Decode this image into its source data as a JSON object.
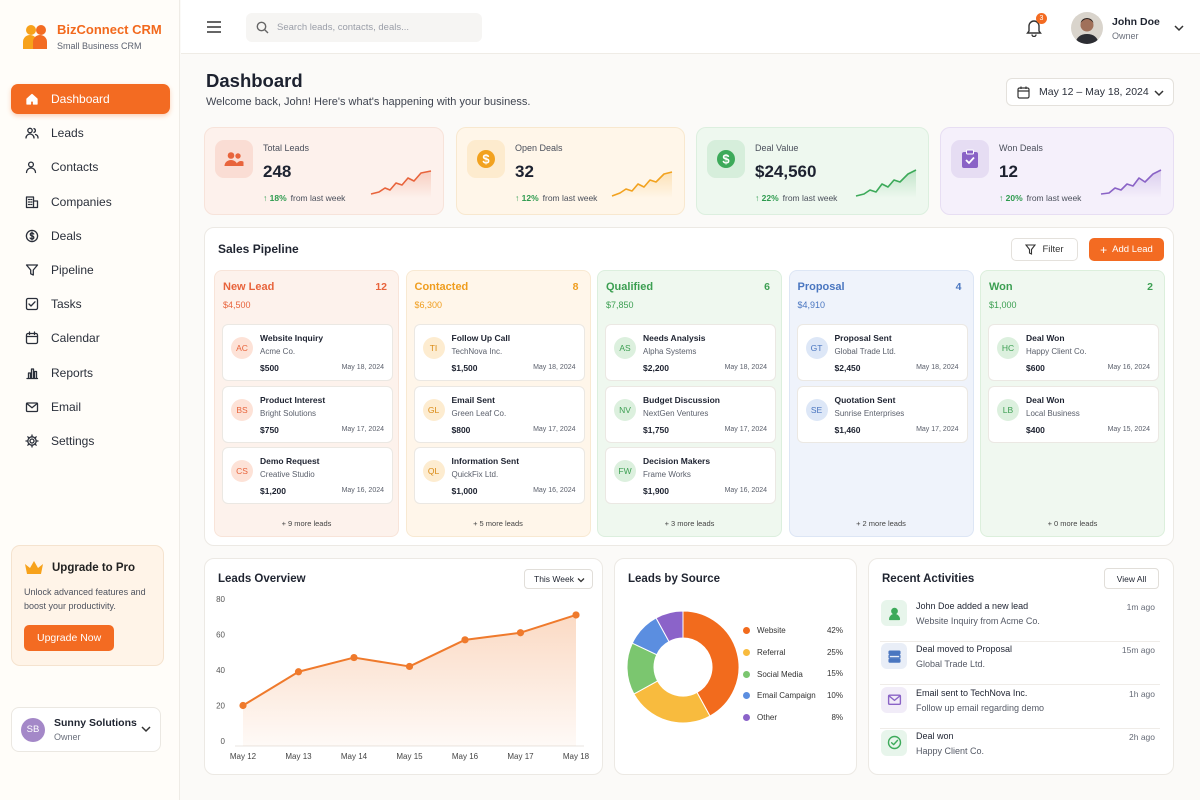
{
  "app": {
    "name": "BizConnect CRM",
    "subtitle": "Small Business CRM"
  },
  "nav": [
    {
      "label": "Dashboard",
      "icon": "home-icon",
      "active": true
    },
    {
      "label": "Leads",
      "icon": "users-icon"
    },
    {
      "label": "Contacts",
      "icon": "contacts-icon"
    },
    {
      "label": "Companies",
      "icon": "building-icon"
    },
    {
      "label": "Deals",
      "icon": "dollar-icon"
    },
    {
      "label": "Pipeline",
      "icon": "funnel-icon"
    },
    {
      "label": "Tasks",
      "icon": "checkbox-icon"
    },
    {
      "label": "Calendar",
      "icon": "calendar-icon"
    },
    {
      "label": "Reports",
      "icon": "bar-chart-icon"
    },
    {
      "label": "Email",
      "icon": "mail-icon"
    },
    {
      "label": "Settings",
      "icon": "gear-icon"
    }
  ],
  "upgrade": {
    "title": "Upgrade to Pro",
    "text": "Unlock advanced features and boost your productivity.",
    "button": "Upgrade Now"
  },
  "account": {
    "initials": "SB",
    "name": "Sunny Solutions",
    "role": "Owner"
  },
  "topbar": {
    "search_placeholder": "Search leads, contacts, deals...",
    "notifications": "3",
    "user_name": "John Doe",
    "user_role": "Owner"
  },
  "header": {
    "title": "Dashboard",
    "subtitle": "Welcome back, John! Here's what's happening with your business.",
    "date_range": "May 12 – May 18, 2024"
  },
  "stats": [
    {
      "label": "Total Leads",
      "value": "248",
      "change": "18%",
      "change_text": "from last week",
      "color": "#e8643c"
    },
    {
      "label": "Open Deals",
      "value": "32",
      "change": "12%",
      "change_text": "from last week",
      "color": "#f2a21f"
    },
    {
      "label": "Deal Value",
      "value": "$24,560",
      "change": "22%",
      "change_text": "from last week",
      "color": "#3daa5a"
    },
    {
      "label": "Won Deals",
      "value": "12",
      "change": "20%",
      "change_text": "from last week",
      "color": "#8a63c6"
    }
  ],
  "pipeline": {
    "title": "Sales Pipeline",
    "filter_label": "Filter",
    "add_label": "Add Lead",
    "columns": [
      {
        "name": "New Lead",
        "count": "12",
        "amount": "$4,500",
        "color": "#e8643c",
        "more": "+ 9 more leads",
        "cards": [
          {
            "initials": "AC",
            "title": "Website Inquiry",
            "company": "Acme Co.",
            "amount": "$500",
            "date": "May 18, 2024"
          },
          {
            "initials": "BS",
            "title": "Product Interest",
            "company": "Bright Solutions",
            "amount": "$750",
            "date": "May 17, 2024"
          },
          {
            "initials": "CS",
            "title": "Demo Request",
            "company": "Creative Studio",
            "amount": "$1,200",
            "date": "May 16, 2024"
          }
        ]
      },
      {
        "name": "Contacted",
        "count": "8",
        "amount": "$6,300",
        "color": "#ef9d1e",
        "more": "+ 5 more leads",
        "cards": [
          {
            "initials": "TI",
            "title": "Follow Up Call",
            "company": "TechNova Inc.",
            "amount": "$1,500",
            "date": "May 18, 2024"
          },
          {
            "initials": "GL",
            "title": "Email Sent",
            "company": "Green Leaf Co.",
            "amount": "$800",
            "date": "May 17, 2024"
          },
          {
            "initials": "QL",
            "title": "Information Sent",
            "company": "QuickFix Ltd.",
            "amount": "$1,000",
            "date": "May 16, 2024"
          }
        ]
      },
      {
        "name": "Qualified",
        "count": "6",
        "amount": "$7,850",
        "color": "#3c9f52",
        "more": "+ 3 more leads",
        "cards": [
          {
            "initials": "AS",
            "title": "Needs Analysis",
            "company": "Alpha Systems",
            "amount": "$2,200",
            "date": "May 18, 2024"
          },
          {
            "initials": "NV",
            "title": "Budget Discussion",
            "company": "NextGen Ventures",
            "amount": "$1,750",
            "date": "May 17, 2024"
          },
          {
            "initials": "FW",
            "title": "Decision Makers",
            "company": "Frame Works",
            "amount": "$1,900",
            "date": "May 16, 2024"
          }
        ]
      },
      {
        "name": "Proposal",
        "count": "4",
        "amount": "$4,910",
        "color": "#4a76c0",
        "more": "+ 2 more leads",
        "cards": [
          {
            "initials": "GT",
            "title": "Proposal Sent",
            "company": "Global Trade Ltd.",
            "amount": "$2,450",
            "date": "May 18, 2024"
          },
          {
            "initials": "SE",
            "title": "Quotation Sent",
            "company": "Sunrise Enterprises",
            "amount": "$1,460",
            "date": "May 17, 2024"
          }
        ]
      },
      {
        "name": "Won",
        "count": "2",
        "amount": "$1,000",
        "color": "#3c9f52",
        "more": "+ 0 more leads",
        "cards": [
          {
            "initials": "HC",
            "title": "Deal Won",
            "company": "Happy Client Co.",
            "amount": "$600",
            "date": "May 16, 2024"
          },
          {
            "initials": "LB",
            "title": "Deal Won",
            "company": "Local Business",
            "amount": "$400",
            "date": "May 15, 2024"
          }
        ]
      }
    ]
  },
  "leads_overview": {
    "title": "Leads Overview",
    "period": "This Week"
  },
  "leads_by_source": {
    "title": "Leads by Source"
  },
  "recent": {
    "title": "Recent Activities",
    "view_all": "View All",
    "items": [
      {
        "title": "John Doe added a new lead",
        "detail": "Website Inquiry from Acme Co.",
        "time": "1m ago",
        "icon": "user-icon",
        "color": "#3daa5a"
      },
      {
        "title": "Deal moved to Proposal",
        "detail": "Global Trade Ltd.",
        "time": "15m ago",
        "icon": "stack-icon",
        "color": "#4a76c0"
      },
      {
        "title": "Email sent to TechNova Inc.",
        "detail": "Follow up email regarding demo",
        "time": "1h ago",
        "icon": "mail-icon",
        "color": "#8a63c6"
      },
      {
        "title": "Deal won",
        "detail": "Happy Client Co.",
        "time": "2h ago",
        "icon": "check-circle-icon",
        "color": "#3daa5a"
      }
    ]
  },
  "chart_data": [
    {
      "type": "area",
      "categories": [
        "May 12",
        "May 13",
        "May 14",
        "May 15",
        "May 16",
        "May 17",
        "May 18"
      ],
      "values": [
        20,
        39,
        47,
        42,
        57,
        61,
        71
      ],
      "title": "Leads Overview",
      "ylim": [
        0,
        80
      ],
      "yticks": [
        0,
        20,
        40,
        60,
        80
      ],
      "color": "#ef7a2c",
      "grid": false
    },
    {
      "type": "pie",
      "title": "Leads by Source",
      "labels": [
        "Website",
        "Referral",
        "Social Media",
        "Email Campaign",
        "Other"
      ],
      "values": [
        42,
        25,
        15,
        10,
        8
      ],
      "value_labels": [
        "42%",
        "25%",
        "15%",
        "10%",
        "8%"
      ],
      "colors": [
        "#f26b1d",
        "#f8bb3e",
        "#7bc66f",
        "#5b8ee0",
        "#8b63c9"
      ],
      "donut": true,
      "legend": "right"
    }
  ]
}
